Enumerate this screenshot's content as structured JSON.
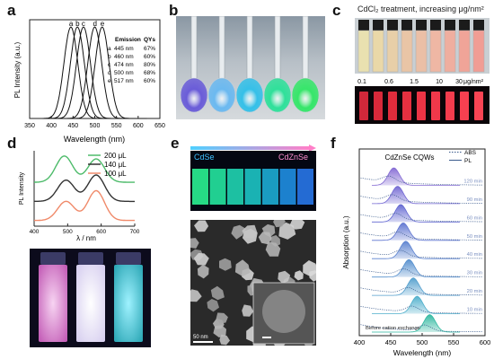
{
  "panels": {
    "a": {
      "letter": "a"
    },
    "b": {
      "letter": "b"
    },
    "c": {
      "letter": "c"
    },
    "d": {
      "letter": "d"
    },
    "e": {
      "letter": "e"
    },
    "f": {
      "letter": "f"
    }
  },
  "chart_data": [
    {
      "panel": "a",
      "type": "line",
      "xlabel": "Wavelength (nm)",
      "ylabel": "PL Intensity (a.u.)",
      "xlim": [
        350,
        650
      ],
      "xticks": [
        "350",
        "400",
        "450",
        "500",
        "550",
        "600",
        "650"
      ],
      "legend_header": {
        "emission": "Emission",
        "qy": "QYs"
      },
      "series": [
        {
          "name": "a",
          "emission": "445 nm",
          "qy": "67%",
          "peak": 445
        },
        {
          "name": "b",
          "emission": "460 nm",
          "qy": "60%",
          "peak": 460
        },
        {
          "name": "c",
          "emission": "474 nm",
          "qy": "80%",
          "peak": 474
        },
        {
          "name": "d",
          "emission": "500 nm",
          "qy": "68%",
          "peak": 500
        },
        {
          "name": "e",
          "emission": "517 nm",
          "qy": "60%",
          "peak": 517
        }
      ],
      "grid": false
    },
    {
      "panel": "d",
      "type": "line",
      "xlabel": "λ / nm",
      "ylabel": "PL Intensity",
      "xlim": [
        400,
        700
      ],
      "xticks": [
        "400",
        "500",
        "600",
        "700"
      ],
      "legend_placement": "top-right",
      "series": [
        {
          "name": "200 μL",
          "color": "#4dbb6a",
          "peaks": [
            [
              490,
              0.62
            ],
            [
              585,
              0.55
            ]
          ],
          "offset": 0.9
        },
        {
          "name": "140 μL",
          "color": "#333333",
          "peaks": [
            [
              495,
              0.5
            ],
            [
              585,
              0.62
            ]
          ],
          "offset": 0.45
        },
        {
          "name": "100 μL",
          "color": "#f08a6a",
          "peaks": [
            [
              495,
              0.45
            ],
            [
              585,
              0.7
            ]
          ],
          "offset": 0.0
        }
      ]
    },
    {
      "panel": "f",
      "type": "line",
      "title": "CdZnSe CQWs",
      "xlabel": "Wavelength (nm)",
      "ylabel": "Absorption (a.u.)",
      "xlim": [
        400,
        600
      ],
      "xticks": [
        "400",
        "450",
        "500",
        "550",
        "600"
      ],
      "legend": [
        {
          "name": "ABS",
          "style": "dotted"
        },
        {
          "name": "PL",
          "style": "solid"
        }
      ],
      "legend_placement": "top-right",
      "series": [
        {
          "name": "120 min",
          "pl_peak": 455
        },
        {
          "name": "90 min",
          "pl_peak": 461
        },
        {
          "name": "60 min",
          "pl_peak": 466
        },
        {
          "name": "50 min",
          "pl_peak": 470
        },
        {
          "name": "40 min",
          "pl_peak": 474
        },
        {
          "name": "30 min",
          "pl_peak": 479
        },
        {
          "name": "20 min",
          "pl_peak": 486
        },
        {
          "name": "10 min",
          "pl_peak": 492
        },
        {
          "name": "Before cation exchange",
          "pl_peak": 512
        }
      ]
    }
  ],
  "panel_c": {
    "title": "CdCl₂ treatment, increasing μg/nm²",
    "scale_labels": [
      "0.1",
      "0.6",
      "1.5",
      "10",
      "30",
      "μg/nm²"
    ]
  },
  "panel_e": {
    "left_label": "CdSe",
    "right_label": "CdZnSe",
    "scale_bar": "50 nm"
  },
  "colors": {
    "panel_a_curves": "#111111",
    "panel_f_fill": "#7fb0d6",
    "cdse_text": "#3fc0ff",
    "cdznse_text": "#ff8fd0"
  }
}
